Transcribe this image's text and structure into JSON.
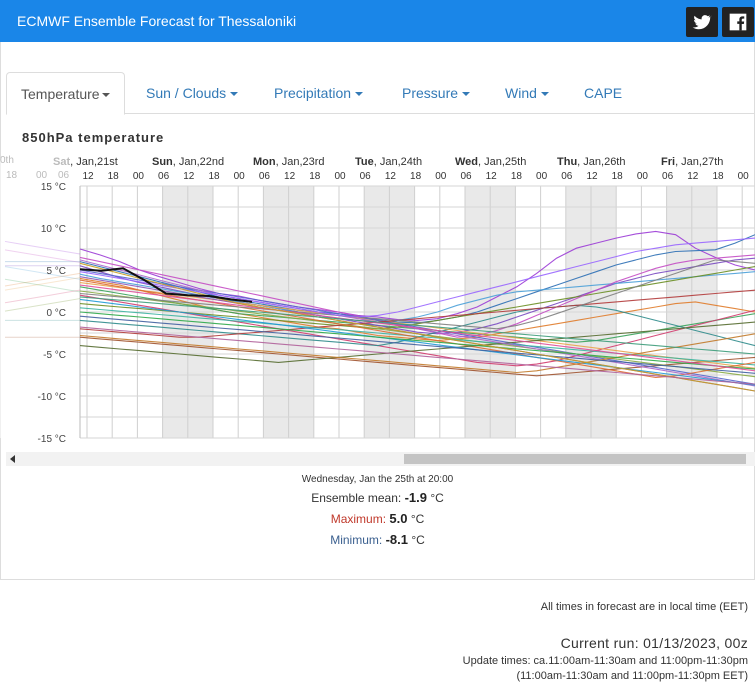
{
  "header": {
    "title": "ECMWF Ensemble Forecast for Thessaloniki",
    "twitter_icon": "twitter-icon",
    "facebook_icon": "facebook-icon",
    "accent": "#1a86e8"
  },
  "tabs": [
    {
      "label": "Temperature",
      "active": true,
      "dropdown": true
    },
    {
      "label": "Sun / Clouds",
      "active": false,
      "dropdown": true
    },
    {
      "label": "Precipitation",
      "active": false,
      "dropdown": true
    },
    {
      "label": "Pressure",
      "active": false,
      "dropdown": true
    },
    {
      "label": "Wind",
      "active": false,
      "dropdown": true
    },
    {
      "label": "CAPE",
      "active": false,
      "dropdown": false
    }
  ],
  "chart_data": {
    "type": "line",
    "title": "850hPa temperature",
    "day_labels": [
      {
        "bold": "Sat",
        "rest": ", Jan,21st"
      },
      {
        "bold": "Sun",
        "rest": ", Jan,22nd"
      },
      {
        "bold": "Mon",
        "rest": ", Jan,23rd"
      },
      {
        "bold": "Tue",
        "rest": ", Jan,24th"
      },
      {
        "bold": "Wed",
        "rest": ", Jan,25th"
      },
      {
        "bold": "Thu",
        "rest": ", Jan,26th"
      },
      {
        "bold": "Fri",
        "rest": ", Jan,27th"
      }
    ],
    "clipped_labels": [
      "0th",
      "18",
      "00",
      "06"
    ],
    "hour_labels": [
      "12",
      "18",
      "00",
      "06",
      "12",
      "18",
      "00",
      "06",
      "12",
      "18",
      "00",
      "06",
      "12",
      "18",
      "00",
      "06",
      "12",
      "18",
      "00",
      "06",
      "12",
      "18",
      "00",
      "06",
      "12",
      "18",
      "00"
    ],
    "y_ticks": [
      "15 °C",
      "10 °C",
      "5 °C",
      "0 °C",
      "-5 °C",
      "-10 °C",
      "-15 °C"
    ],
    "ylim": [
      -15,
      15
    ],
    "hour_step": 6,
    "first_hour": 12,
    "observed": {
      "name": "observed",
      "color": "#111111",
      "values": [
        5.1,
        4.9,
        5.2,
        3.8,
        2.2,
        2.0,
        1.9,
        1.5,
        1.2
      ]
    },
    "series_colors": [
      "#9b3bd6",
      "#2c6fb5",
      "#e07b2a",
      "#3aa35a",
      "#7a4bc2",
      "#d13b6e",
      "#4aa0d8",
      "#a0522d",
      "#6a8e23",
      "#c44dc4",
      "#2e8b8b",
      "#e9a34b",
      "#5566cc",
      "#b23b3b",
      "#88aa44",
      "#8c5ab8",
      "#3cb4a0",
      "#dd6a33",
      "#556b2f",
      "#aa66cc",
      "#1f9ad6",
      "#c27a2a",
      "#7f7f7f",
      "#2ea84a",
      "#9966ff",
      "#e04e9a",
      "#4060a0",
      "#c8a020",
      "#3d9c7a",
      "#b0609a"
    ],
    "ensemble": [
      [
        7.5,
        6.8,
        6.0,
        5.0,
        4.2,
        3.5,
        2.8,
        2.2,
        1.9,
        1.4,
        1.0,
        0.6,
        0.3,
        0.0,
        -0.4,
        -0.6,
        -0.9,
        -1.0,
        -0.8,
        -0.2,
        0.6,
        1.8,
        3.0,
        4.6,
        6.4,
        7.6,
        8.2,
        8.8,
        9.3,
        9.6,
        9.2,
        7.6,
        6.5,
        5.6,
        5.0
      ],
      [
        6.0,
        5.4,
        4.8,
        4.2,
        3.6,
        3.0,
        2.4,
        1.8,
        1.4,
        1.0,
        0.6,
        0.2,
        0.0,
        -0.2,
        -0.5,
        -0.9,
        -1.2,
        -1.3,
        -1.0,
        -0.6,
        0.0,
        0.8,
        1.6,
        2.4,
        3.2,
        4.0,
        4.8,
        5.6,
        6.2,
        6.8,
        7.2,
        7.3,
        7.4,
        8.2,
        9.2
      ],
      [
        4.0,
        3.6,
        3.2,
        2.6,
        2.0,
        1.4,
        0.8,
        0.2,
        -0.2,
        -0.6,
        -1.0,
        -1.4,
        -1.8,
        -2.0,
        -2.4,
        -2.8,
        -3.0,
        -3.2,
        -3.4,
        -3.2,
        -3.0,
        -2.6,
        -2.2,
        -1.8,
        -1.4,
        -1.0,
        -0.6,
        -0.2,
        0.2,
        0.6,
        1.0,
        1.2,
        0.8,
        0.4,
        0.0
      ],
      [
        3.0,
        2.6,
        2.2,
        1.8,
        1.4,
        1.0,
        0.6,
        0.2,
        -0.2,
        -0.4,
        -0.6,
        -0.8,
        -1.0,
        -1.2,
        -1.4,
        -1.6,
        -1.8,
        -2.0,
        -2.2,
        -2.4,
        -2.6,
        -2.8,
        -3.0,
        -3.2,
        -3.4,
        -3.6,
        -3.4,
        -3.0,
        -2.6,
        -2.2,
        -1.8,
        -1.4,
        -1.0,
        -0.6,
        -0.2
      ],
      [
        5.5,
        4.8,
        4.1,
        3.5,
        3.0,
        2.5,
        2.0,
        1.6,
        1.2,
        0.8,
        0.4,
        0.0,
        -0.4,
        -0.8,
        -1.2,
        -1.6,
        -2.0,
        -2.4,
        -2.6,
        -2.4,
        -2.0,
        -1.4,
        -0.6,
        0.2,
        1.0,
        1.8,
        2.6,
        3.4,
        4.0,
        4.6,
        5.0,
        5.4,
        5.8,
        6.2,
        6.4
      ],
      [
        2.0,
        1.6,
        1.2,
        0.8,
        0.4,
        0.0,
        -0.4,
        -0.8,
        -1.2,
        -1.6,
        -2.0,
        -2.4,
        -2.8,
        -3.2,
        -3.6,
        -4.0,
        -4.4,
        -4.8,
        -5.2,
        -5.6,
        -6.0,
        -6.2,
        -6.4,
        -6.2,
        -5.8,
        -5.2,
        -4.6,
        -4.0,
        -3.4,
        -2.8,
        -2.2,
        -1.6,
        -1.0,
        -0.4,
        0.2
      ],
      [
        4.5,
        4.0,
        3.6,
        3.2,
        2.8,
        2.4,
        2.0,
        1.6,
        1.2,
        0.8,
        0.4,
        0.0,
        -0.4,
        -0.8,
        -1.0,
        -1.2,
        -1.0,
        -0.6,
        0.0,
        0.8,
        1.4,
        2.0,
        2.4,
        2.6,
        2.8,
        3.0,
        3.2,
        3.4,
        3.6,
        3.8,
        4.0,
        4.2,
        4.4,
        4.6,
        4.8
      ],
      [
        -3.0,
        -3.2,
        -3.4,
        -3.6,
        -3.8,
        -4.0,
        -4.2,
        -4.4,
        -4.6,
        -4.8,
        -5.0,
        -5.2,
        -5.4,
        -5.6,
        -5.8,
        -6.0,
        -6.2,
        -6.4,
        -6.6,
        -6.8,
        -7.0,
        -7.2,
        -7.4,
        -7.6,
        -7.4,
        -7.2,
        -7.0,
        -6.8,
        -6.6,
        -6.4,
        -6.2,
        -6.0,
        -5.8,
        -5.6,
        -5.4
      ],
      [
        1.0,
        0.8,
        0.6,
        0.4,
        0.2,
        0.0,
        -0.2,
        -0.4,
        -0.6,
        -0.8,
        -1.0,
        -1.2,
        -1.4,
        -1.6,
        -1.8,
        -2.0,
        -1.8,
        -1.4,
        -1.0,
        -0.6,
        -0.2,
        0.2,
        0.6,
        1.0,
        1.4,
        1.8,
        2.2,
        2.6,
        3.0,
        3.4,
        3.8,
        4.2,
        4.6,
        5.0,
        5.4
      ],
      [
        6.5,
        6.0,
        5.5,
        5.0,
        4.5,
        4.0,
        3.5,
        3.0,
        2.5,
        2.0,
        1.5,
        1.0,
        0.5,
        0.0,
        -0.5,
        -1.0,
        -1.5,
        -2.0,
        -2.5,
        -3.0,
        -2.8,
        -2.2,
        -1.4,
        -0.4,
        0.6,
        1.6,
        2.6,
        3.6,
        4.4,
        5.2,
        5.8,
        6.2,
        6.4,
        6.6,
        6.8
      ],
      [
        -1.0,
        -1.2,
        -1.4,
        -1.6,
        -1.8,
        -2.0,
        -2.2,
        -2.4,
        -2.6,
        -2.8,
        -3.0,
        -3.2,
        -3.4,
        -3.6,
        -3.8,
        -4.0,
        -3.6,
        -3.0,
        -2.4,
        -1.8,
        -1.2,
        -0.6,
        0.0,
        0.4,
        0.6,
        0.8,
        0.6,
        0.2,
        -0.4,
        -1.0,
        -1.6,
        -2.2,
        -2.8,
        -3.4,
        -4.0
      ],
      [
        3.5,
        3.2,
        2.9,
        2.6,
        2.3,
        2.0,
        1.7,
        1.4,
        1.1,
        0.8,
        0.5,
        0.2,
        -0.1,
        -0.4,
        -0.7,
        -1.0,
        -1.3,
        -1.6,
        -1.9,
        -2.2,
        -2.5,
        -2.8,
        -3.1,
        -3.4,
        -3.7,
        -4.0,
        -4.3,
        -4.6,
        -4.9,
        -5.2,
        -5.5,
        -5.8,
        -6.1,
        -6.4,
        -6.7
      ],
      [
        5.0,
        4.6,
        4.2,
        3.8,
        3.4,
        3.0,
        2.6,
        2.2,
        1.8,
        1.4,
        1.0,
        0.6,
        0.2,
        -0.2,
        -0.6,
        -1.0,
        -1.4,
        -1.8,
        -2.2,
        -2.6,
        -3.0,
        -3.4,
        -3.8,
        -4.2,
        -4.6,
        -5.0,
        -5.4,
        -5.8,
        -6.2,
        -6.6,
        -7.0,
        -7.4,
        -7.8,
        -8.2,
        -8.6
      ],
      [
        -2.0,
        -2.2,
        -2.4,
        -2.6,
        -2.8,
        -3.0,
        -3.0,
        -2.8,
        -2.6,
        -2.4,
        -2.2,
        -2.0,
        -1.8,
        -1.6,
        -1.4,
        -1.2,
        -1.0,
        -0.8,
        -0.6,
        -0.4,
        -0.2,
        0.0,
        0.2,
        0.4,
        0.6,
        0.8,
        1.0,
        1.2,
        1.4,
        1.6,
        1.8,
        2.0,
        2.2,
        2.4,
        2.6
      ],
      [
        2.5,
        2.2,
        1.9,
        1.6,
        1.3,
        1.0,
        0.7,
        0.4,
        0.1,
        -0.2,
        -0.5,
        -0.8,
        -1.1,
        -1.4,
        -1.7,
        -2.0,
        -2.3,
        -2.6,
        -2.9,
        -3.2,
        -3.5,
        -3.8,
        -4.1,
        -4.4,
        -4.7,
        -5.0,
        -5.3,
        -5.6,
        -5.9,
        -6.2,
        -6.5,
        -6.8,
        -7.1,
        -7.4,
        -7.7
      ],
      [
        4.2,
        3.8,
        3.4,
        3.0,
        2.6,
        2.2,
        1.8,
        1.4,
        1.0,
        0.6,
        0.2,
        -0.2,
        -0.6,
        -1.0,
        -1.4,
        -1.8,
        -2.2,
        -2.6,
        -3.0,
        -3.4,
        -3.8,
        -4.2,
        -4.6,
        -5.0,
        -5.4,
        -5.8,
        -6.2,
        -6.6,
        -7.0,
        -7.4,
        -7.8,
        -8.2,
        -8.6,
        -9.0,
        -9.4
      ],
      [
        0.5,
        0.3,
        0.1,
        -0.1,
        -0.3,
        -0.5,
        -0.7,
        -0.9,
        -1.1,
        -1.3,
        -1.5,
        -1.7,
        -1.9,
        -2.1,
        -2.3,
        -2.5,
        -2.7,
        -2.9,
        -3.1,
        -3.3,
        -3.5,
        -3.7,
        -3.9,
        -4.1,
        -4.3,
        -4.5,
        -4.7,
        -4.9,
        -5.1,
        -5.3,
        -5.5,
        -5.7,
        -5.9,
        -6.1,
        -6.3
      ],
      [
        3.8,
        3.4,
        3.0,
        2.6,
        2.2,
        1.8,
        1.4,
        1.0,
        0.6,
        0.2,
        -0.2,
        -0.6,
        -1.0,
        -1.4,
        -1.8,
        -2.2,
        -2.6,
        -3.0,
        -3.4,
        -3.8,
        -4.2,
        -4.6,
        -5.0,
        -5.4,
        -5.8,
        -6.2,
        -6.6,
        -7.0,
        -7.4,
        -7.8,
        -7.6,
        -7.2,
        -6.8,
        -6.4,
        -6.0
      ],
      [
        -4.0,
        -4.2,
        -4.4,
        -4.6,
        -4.8,
        -5.0,
        -5.2,
        -5.4,
        -5.6,
        -5.8,
        -6.0,
        -5.8,
        -5.6,
        -5.4,
        -5.2,
        -5.0,
        -4.8,
        -4.6,
        -4.4,
        -4.2,
        -4.0,
        -3.8,
        -3.6,
        -3.4,
        -3.2,
        -3.0,
        -2.8,
        -2.6,
        -2.4,
        -2.2,
        -2.0,
        -1.8,
        -1.6,
        -1.4,
        -1.2
      ],
      [
        6.2,
        5.6,
        5.0,
        4.4,
        3.8,
        3.2,
        2.6,
        2.0,
        1.6,
        1.2,
        0.8,
        0.4,
        0.0,
        -0.4,
        -0.8,
        -1.2,
        -1.6,
        -2.0,
        -2.4,
        -2.8,
        -3.2,
        -3.6,
        -4.0,
        -4.4,
        -4.8,
        -5.2,
        -5.6,
        -6.0,
        -6.4,
        -6.8,
        -7.2,
        -7.6,
        -8.0,
        -8.4,
        -8.8
      ],
      [
        1.5,
        1.2,
        0.9,
        0.6,
        0.3,
        0.0,
        -0.3,
        -0.6,
        -0.9,
        -1.2,
        -1.5,
        -1.8,
        -2.1,
        -2.4,
        -2.7,
        -3.0,
        -3.3,
        -3.6,
        -3.9,
        -4.2,
        -4.5,
        -4.8,
        -5.1,
        -5.4,
        -5.7,
        -6.0,
        -6.3,
        -6.6,
        -6.9,
        -7.2,
        -7.5,
        -7.8,
        -8.1,
        -8.4,
        -8.7
      ],
      [
        -2.8,
        -3.0,
        -3.2,
        -3.4,
        -3.6,
        -3.8,
        -4.0,
        -4.2,
        -4.4,
        -4.6,
        -4.8,
        -5.0,
        -5.2,
        -5.4,
        -5.6,
        -5.8,
        -6.0,
        -6.2,
        -6.4,
        -6.6,
        -6.8,
        -7.0,
        -7.2,
        -7.0,
        -6.6,
        -6.2,
        -5.8,
        -5.4,
        -5.0,
        -4.6,
        -4.2,
        -3.8,
        -3.4,
        -3.0,
        -2.6
      ],
      [
        2.2,
        2.0,
        1.8,
        1.6,
        1.4,
        1.2,
        1.0,
        0.8,
        0.6,
        0.4,
        0.2,
        0.0,
        -0.2,
        -0.4,
        -0.6,
        -0.8,
        -1.0,
        -1.2,
        -1.4,
        -1.6,
        -1.8,
        -2.0,
        -1.6,
        -1.0,
        -0.2,
        0.6,
        1.4,
        2.2,
        3.0,
        3.8,
        4.6,
        5.4,
        6.2,
        6.0,
        5.8
      ],
      [
        0.0,
        -0.2,
        -0.4,
        -0.6,
        -0.8,
        -1.0,
        -1.2,
        -1.4,
        -1.6,
        -1.8,
        -2.0,
        -2.2,
        -2.4,
        -2.6,
        -2.8,
        -3.0,
        -3.2,
        -3.4,
        -3.6,
        -3.8,
        -4.0,
        -4.2,
        -4.4,
        -4.6,
        -4.8,
        -5.0,
        -5.2,
        -5.4,
        -5.6,
        -5.8,
        -6.0,
        -6.2,
        -6.4,
        -6.6,
        -6.8
      ],
      [
        4.8,
        4.4,
        4.0,
        3.6,
        3.2,
        2.8,
        2.4,
        2.0,
        1.6,
        1.2,
        0.8,
        0.4,
        0.0,
        -0.4,
        -0.6,
        -0.4,
        0.0,
        0.6,
        1.2,
        1.8,
        2.4,
        3.0,
        3.6,
        4.2,
        4.8,
        5.4,
        6.0,
        6.6,
        7.2,
        7.6,
        8.0,
        8.2,
        8.4,
        8.6,
        8.8
      ],
      [
        3.2,
        2.9,
        2.6,
        2.3,
        2.0,
        1.7,
        1.4,
        1.1,
        0.8,
        0.5,
        0.2,
        -0.1,
        -0.4,
        -0.7,
        -1.0,
        -1.3,
        -1.6,
        -1.9,
        -2.2,
        -2.5,
        -2.8,
        -3.1,
        -3.4,
        -3.7,
        -4.0,
        -4.3,
        -4.6,
        -4.9,
        -5.2,
        -5.5,
        -5.8,
        -6.1,
        -6.4,
        -6.7,
        -7.0
      ],
      [
        -0.5,
        -0.7,
        -0.9,
        -1.1,
        -1.3,
        -1.5,
        -1.7,
        -1.9,
        -2.1,
        -2.3,
        -2.5,
        -2.7,
        -2.9,
        -3.1,
        -3.3,
        -3.5,
        -3.7,
        -3.9,
        -4.1,
        -4.3,
        -4.5,
        -4.7,
        -4.9,
        -5.1,
        -5.3,
        -5.5,
        -5.7,
        -5.9,
        -6.1,
        -6.3,
        -6.5,
        -6.7,
        -6.9,
        -7.1,
        -7.3
      ],
      [
        5.8,
        5.2,
        4.6,
        4.0,
        3.4,
        2.8,
        2.2,
        1.6,
        1.0,
        0.6,
        0.2,
        -0.2,
        -0.6,
        -1.0,
        -1.4,
        -1.8,
        -2.2,
        -2.6,
        -3.0,
        -3.4,
        -3.8,
        -4.2,
        -4.6,
        -5.0,
        -5.4,
        -5.8,
        -6.2,
        -6.6,
        -7.0,
        -7.4,
        -7.8,
        -8.2,
        -8.6,
        -9.0,
        -9.4
      ],
      [
        1.8,
        1.6,
        1.4,
        1.2,
        1.0,
        0.8,
        0.6,
        0.4,
        0.2,
        0.0,
        -0.2,
        -0.4,
        -0.6,
        -0.8,
        -1.0,
        -1.2,
        -1.4,
        -1.6,
        -1.8,
        -2.0,
        -2.2,
        -2.4,
        -2.6,
        -2.8,
        -3.0,
        -3.2,
        -3.4,
        -3.6,
        -3.8,
        -4.0,
        -4.2,
        -4.4,
        -4.6,
        -4.8,
        -5.0
      ],
      [
        -1.8,
        -2.0,
        -2.2,
        -2.4,
        -2.6,
        -2.8,
        -3.0,
        -3.2,
        -3.4,
        -3.6,
        -3.8,
        -4.0,
        -4.2,
        -4.4,
        -4.6,
        -4.8,
        -5.0,
        -5.2,
        -5.4,
        -5.6,
        -5.8,
        -6.0,
        -6.2,
        -6.4,
        -6.6,
        -6.8,
        -7.0,
        -7.2,
        -7.4,
        -7.6,
        -7.8,
        -8.0,
        -8.2,
        -8.4,
        -8.6
      ]
    ]
  },
  "scrollbar": {
    "arrow_icon": "arrow-left-icon"
  },
  "info": {
    "date": "Wednesday, Jan the 25th at 20:00",
    "mean_label": "Ensemble mean:",
    "mean_value": "-1.9",
    "max_label": "Maximum:",
    "max_value": "5.0",
    "min_label": "Minimum:",
    "min_value": "-8.1",
    "unit": "°C"
  },
  "footer": {
    "note": "All times in forecast are in local time (EET)",
    "run": "Current run: 01/13/2023, 00z",
    "update1": "Update times: ca.11:00am-11:30am and 11:00pm-11:30pm",
    "update2": "(11:00am-11:30am and 11:00pm-11:30pm EET)"
  }
}
